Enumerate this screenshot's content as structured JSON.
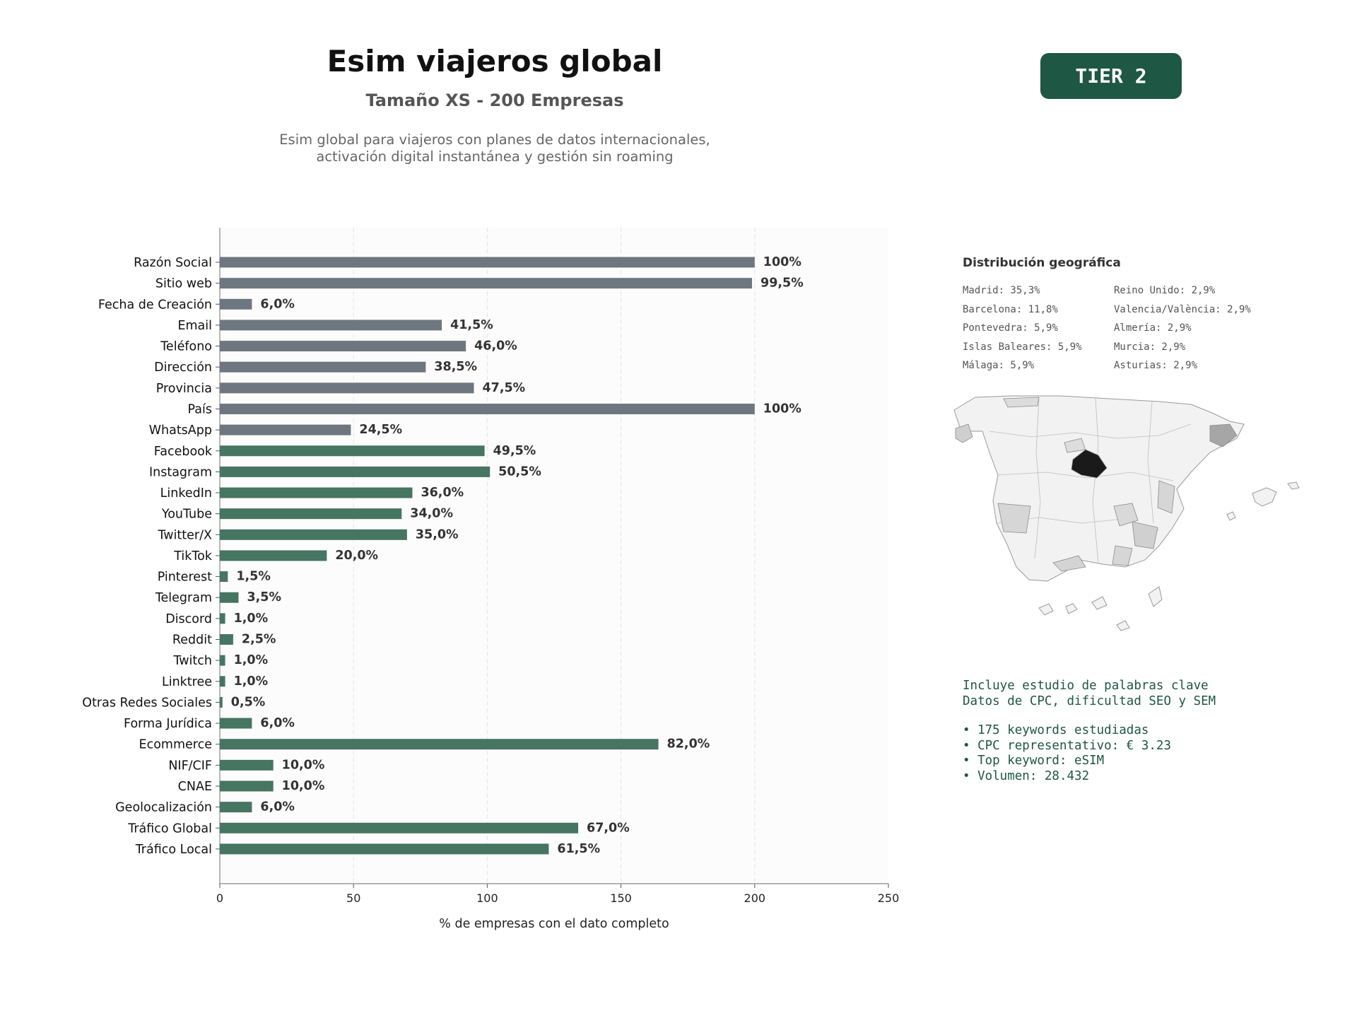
{
  "header": {
    "title": "Esim viajeros global",
    "subtitle": "Tamaño XS - 200 Empresas",
    "description_line1": "Esim global para viajeros con planes de datos internacionales,",
    "description_line2": "activación digital instantánea y gestión sin roaming",
    "tier_label": "TIER 2"
  },
  "colors": {
    "gray_bar": "#6e7780",
    "green_bar": "#467561",
    "tier_bg": "#1e5743",
    "keyword_text": "#1e5743"
  },
  "chart_data": {
    "type": "bar",
    "orientation": "horizontal",
    "xlabel": "% de empresas con el dato completo",
    "xlim": [
      0,
      250
    ],
    "xticks": [
      0,
      50,
      100,
      150,
      200,
      250
    ],
    "grid": "vertical dashed",
    "categories": [
      "Razón Social",
      "Sitio web",
      "Fecha de Creación",
      "Email",
      "Teléfono",
      "Dirección",
      "Provincia",
      "País",
      "WhatsApp",
      "Facebook",
      "Instagram",
      "LinkedIn",
      "YouTube",
      "Twitter/X",
      "TikTok",
      "Pinterest",
      "Telegram",
      "Discord",
      "Reddit",
      "Twitch",
      "Linktree",
      "Otras Redes Sociales",
      "Forma Jurídica",
      "Ecommerce",
      "NIF/CIF",
      "CNAE",
      "Geolocalización",
      "Tráfico Global",
      "Tráfico Local"
    ],
    "values": [
      200,
      199,
      12,
      83,
      92,
      77,
      95,
      200,
      49,
      99,
      101,
      72,
      68,
      70,
      40,
      3,
      7,
      2,
      5,
      2,
      2,
      1,
      12,
      164,
      20,
      20,
      12,
      134,
      123
    ],
    "labels": [
      "100%",
      "99,5%",
      "6,0%",
      "41,5%",
      "46,0%",
      "38,5%",
      "47,5%",
      "100%",
      "24,5%",
      "49,5%",
      "50,5%",
      "36,0%",
      "34,0%",
      "35,0%",
      "20,0%",
      "1,5%",
      "3,5%",
      "1,0%",
      "2,5%",
      "1,0%",
      "1,0%",
      "0,5%",
      "6,0%",
      "82,0%",
      "10,0%",
      "10,0%",
      "6,0%",
      "67,0%",
      "61,5%"
    ],
    "colors": [
      "gray",
      "gray",
      "gray",
      "gray",
      "gray",
      "gray",
      "gray",
      "gray",
      "gray",
      "green",
      "green",
      "green",
      "green",
      "green",
      "green",
      "green",
      "green",
      "green",
      "green",
      "green",
      "green",
      "green",
      "green",
      "green",
      "green",
      "green",
      "green",
      "green",
      "green"
    ]
  },
  "geo": {
    "title": "Distribución geográfica",
    "left": [
      "Madrid: 35,3%",
      "Barcelona: 11,8%",
      "Pontevedra: 5,9%",
      "Islas Baleares: 5,9%",
      "Málaga: 5,9%"
    ],
    "right": [
      "Reino Unido: 2,9%",
      "Valencia/València: 2,9%",
      "Almería: 2,9%",
      "Murcia: 2,9%",
      "Asturias: 2,9%"
    ]
  },
  "keywords": {
    "line1": "Incluye estudio de palabras clave",
    "line2": "Datos de CPC, dificultad SEO y SEM",
    "bullets": [
      "• 175 keywords estudiadas",
      "• CPC representativo: € 3.23",
      "• Top keyword: eSIM",
      "• Volumen: 28.432"
    ]
  }
}
